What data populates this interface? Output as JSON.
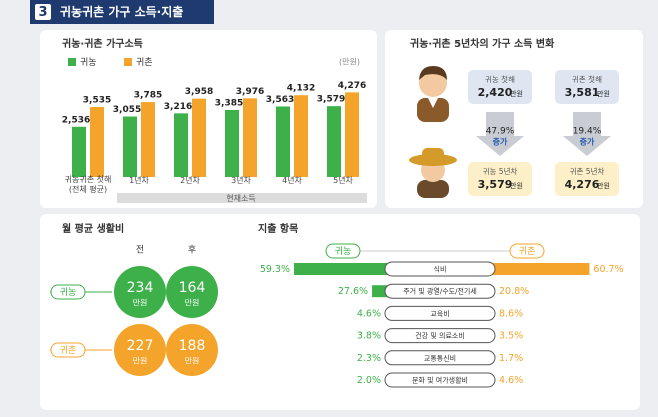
{
  "header": {
    "number": "3",
    "title": "귀농귀촌 가구 소득·지출"
  },
  "chart_data": [
    {
      "type": "bar",
      "title": "귀농·귀촌 가구소득",
      "unit": "(만원)",
      "categories": [
        "귀농귀촌 첫해 (전체 평균)",
        "1년차",
        "2년차",
        "3년차",
        "4년차",
        "5년차"
      ],
      "group_label": "현재소득",
      "series": [
        {
          "name": "귀농",
          "color": "#3db049",
          "values": [
            2536,
            3055,
            3216,
            3385,
            3563,
            3579
          ],
          "value_labels": [
            "2,536",
            "3,055",
            "3,216",
            "3,385",
            "3,563",
            "3,579"
          ]
        },
        {
          "name": "귀촌",
          "color": "#f4a42a",
          "values": [
            3535,
            3785,
            3958,
            3976,
            4132,
            4276
          ],
          "value_labels": [
            "3,535",
            "3,785",
            "3,958",
            "3,976",
            "4,132",
            "4,276"
          ]
        }
      ],
      "ylim": [
        0,
        4800
      ]
    },
    {
      "type": "diverging_bar",
      "title": "지출 항목",
      "categories": [
        "식비",
        "주거 및 광열/수도/전기세",
        "교육비",
        "건강 및 의료소비",
        "교통통신비",
        "문화 및 여가생활비"
      ],
      "series": [
        {
          "name": "귀농",
          "color": "#3db049",
          "values": [
            59.3,
            27.6,
            4.6,
            3.8,
            2.3,
            2.0
          ],
          "value_labels": [
            "59.3%",
            "27.6%",
            "4.6%",
            "3.8%",
            "2.3%",
            "2.0%"
          ]
        },
        {
          "name": "귀촌",
          "color": "#f4a42a",
          "values": [
            60.7,
            20.8,
            8.6,
            3.5,
            1.7,
            4.6
          ],
          "value_labels": [
            "60.7%",
            "20.8%",
            "8.6%",
            "3.5%",
            "1.7%",
            "4.6%"
          ]
        }
      ],
      "xlim": [
        0,
        65
      ]
    }
  ],
  "income_change": {
    "title": "귀농·귀촌 5년차의 가구 소득 변화",
    "items": [
      {
        "label": "귀농 첫해",
        "amount": "2,420",
        "unit": "만원"
      },
      {
        "label": "귀촌 첫해",
        "amount": "3,581",
        "unit": "만원"
      },
      {
        "label": "귀농 5년차",
        "amount": "3,579",
        "unit": "만원"
      },
      {
        "label": "귀촌 5년차",
        "amount": "4,276",
        "unit": "만원"
      }
    ],
    "changes": [
      {
        "rate": "47.9%",
        "note": "증가"
      },
      {
        "rate": "19.4%",
        "note": "증가"
      }
    ]
  },
  "living_cost": {
    "title": "월 평균 생활비",
    "columns": [
      "전",
      "후"
    ],
    "rows": [
      {
        "label": "귀농",
        "values": [
          234,
          164
        ],
        "unit": "만원"
      },
      {
        "label": "귀촌",
        "values": [
          227,
          188
        ],
        "unit": "만원"
      }
    ]
  }
}
